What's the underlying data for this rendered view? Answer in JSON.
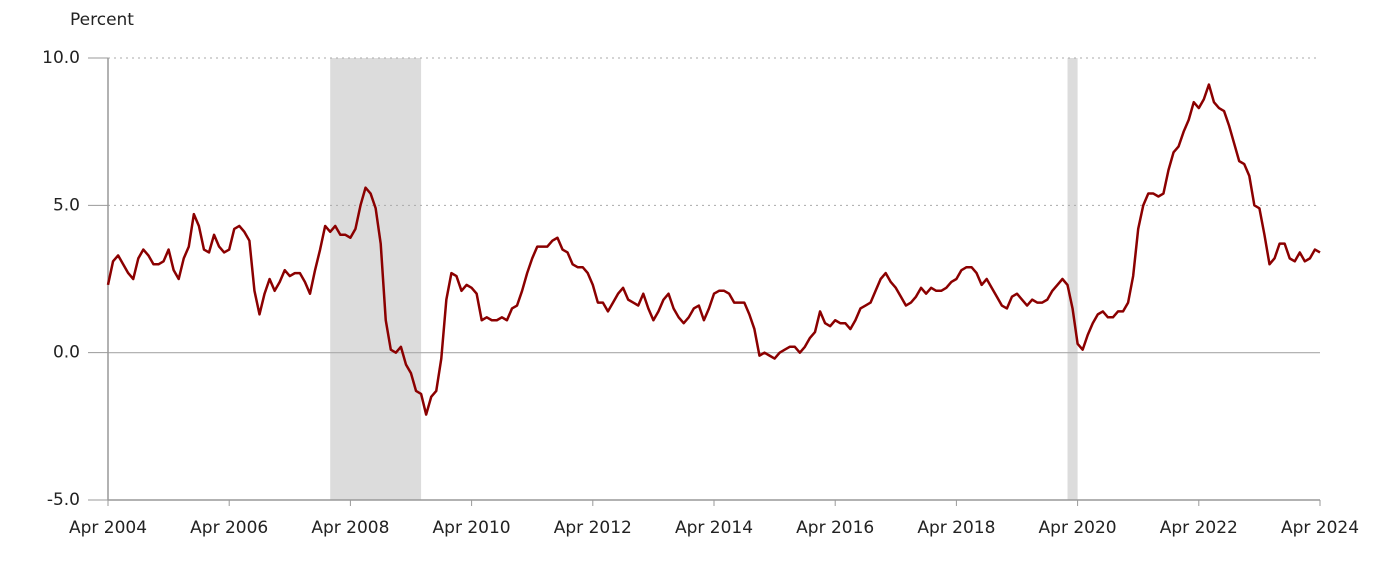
{
  "chart_data": {
    "type": "line",
    "y_label": "Percent",
    "color": "#8b0000",
    "recession_color": "#dcdcdc",
    "recessions": [
      [
        "2007-12",
        "2009-06"
      ],
      [
        "2020-02",
        "2020-04"
      ]
    ],
    "xlim": [
      "2004-04",
      "2024-04"
    ],
    "xticks": [
      {
        "value": "2004-04",
        "label": "Apr 2004"
      },
      {
        "value": "2006-04",
        "label": "Apr 2006"
      },
      {
        "value": "2008-04",
        "label": "Apr 2008"
      },
      {
        "value": "2010-04",
        "label": "Apr 2010"
      },
      {
        "value": "2012-04",
        "label": "Apr 2012"
      },
      {
        "value": "2014-04",
        "label": "Apr 2014"
      },
      {
        "value": "2016-04",
        "label": "Apr 2016"
      },
      {
        "value": "2018-04",
        "label": "Apr 2018"
      },
      {
        "value": "2020-04",
        "label": "Apr 2020"
      },
      {
        "value": "2022-04",
        "label": "Apr 2022"
      },
      {
        "value": "2024-04",
        "label": "Apr 2024"
      }
    ],
    "ylim": [
      -5,
      10
    ],
    "yticks": [
      {
        "value": -5,
        "label": "-5.0"
      },
      {
        "value": 0,
        "label": "0.0"
      },
      {
        "value": 5,
        "label": "5.0"
      },
      {
        "value": 10,
        "label": "10.0"
      }
    ],
    "grid": true,
    "x": [
      "2004-04",
      "2004-05",
      "2004-06",
      "2004-07",
      "2004-08",
      "2004-09",
      "2004-10",
      "2004-11",
      "2004-12",
      "2005-01",
      "2005-02",
      "2005-03",
      "2005-04",
      "2005-05",
      "2005-06",
      "2005-07",
      "2005-08",
      "2005-09",
      "2005-10",
      "2005-11",
      "2005-12",
      "2006-01",
      "2006-02",
      "2006-03",
      "2006-04",
      "2006-05",
      "2006-06",
      "2006-07",
      "2006-08",
      "2006-09",
      "2006-10",
      "2006-11",
      "2006-12",
      "2007-01",
      "2007-02",
      "2007-03",
      "2007-04",
      "2007-05",
      "2007-06",
      "2007-07",
      "2007-08",
      "2007-09",
      "2007-10",
      "2007-11",
      "2007-12",
      "2008-01",
      "2008-02",
      "2008-03",
      "2008-04",
      "2008-05",
      "2008-06",
      "2008-07",
      "2008-08",
      "2008-09",
      "2008-10",
      "2008-11",
      "2008-12",
      "2009-01",
      "2009-02",
      "2009-03",
      "2009-04",
      "2009-05",
      "2009-06",
      "2009-07",
      "2009-08",
      "2009-09",
      "2009-10",
      "2009-11",
      "2009-12",
      "2010-01",
      "2010-02",
      "2010-03",
      "2010-04",
      "2010-05",
      "2010-06",
      "2010-07",
      "2010-08",
      "2010-09",
      "2010-10",
      "2010-11",
      "2010-12",
      "2011-01",
      "2011-02",
      "2011-03",
      "2011-04",
      "2011-05",
      "2011-06",
      "2011-07",
      "2011-08",
      "2011-09",
      "2011-10",
      "2011-11",
      "2011-12",
      "2012-01",
      "2012-02",
      "2012-03",
      "2012-04",
      "2012-05",
      "2012-06",
      "2012-07",
      "2012-08",
      "2012-09",
      "2012-10",
      "2012-11",
      "2012-12",
      "2013-01",
      "2013-02",
      "2013-03",
      "2013-04",
      "2013-05",
      "2013-06",
      "2013-07",
      "2013-08",
      "2013-09",
      "2013-10",
      "2013-11",
      "2013-12",
      "2014-01",
      "2014-02",
      "2014-03",
      "2014-04",
      "2014-05",
      "2014-06",
      "2014-07",
      "2014-08",
      "2014-09",
      "2014-10",
      "2014-11",
      "2014-12",
      "2015-01",
      "2015-02",
      "2015-03",
      "2015-04",
      "2015-05",
      "2015-06",
      "2015-07",
      "2015-08",
      "2015-09",
      "2015-10",
      "2015-11",
      "2015-12",
      "2016-01",
      "2016-02",
      "2016-03",
      "2016-04",
      "2016-05",
      "2016-06",
      "2016-07",
      "2016-08",
      "2016-09",
      "2016-10",
      "2016-11",
      "2016-12",
      "2017-01",
      "2017-02",
      "2017-03",
      "2017-04",
      "2017-05",
      "2017-06",
      "2017-07",
      "2017-08",
      "2017-09",
      "2017-10",
      "2017-11",
      "2017-12",
      "2018-01",
      "2018-02",
      "2018-03",
      "2018-04",
      "2018-05",
      "2018-06",
      "2018-07",
      "2018-08",
      "2018-09",
      "2018-10",
      "2018-11",
      "2018-12",
      "2019-01",
      "2019-02",
      "2019-03",
      "2019-04",
      "2019-05",
      "2019-06",
      "2019-07",
      "2019-08",
      "2019-09",
      "2019-10",
      "2019-11",
      "2019-12",
      "2020-01",
      "2020-02",
      "2020-03",
      "2020-04",
      "2020-05",
      "2020-06",
      "2020-07",
      "2020-08",
      "2020-09",
      "2020-10",
      "2020-11",
      "2020-12",
      "2021-01",
      "2021-02",
      "2021-03",
      "2021-04",
      "2021-05",
      "2021-06",
      "2021-07",
      "2021-08",
      "2021-09",
      "2021-10",
      "2021-11",
      "2021-12",
      "2022-01",
      "2022-02",
      "2022-03",
      "2022-04",
      "2022-05",
      "2022-06",
      "2022-07",
      "2022-08",
      "2022-09",
      "2022-10",
      "2022-11",
      "2022-12",
      "2023-01",
      "2023-02",
      "2023-03",
      "2023-04",
      "2023-05",
      "2023-06",
      "2023-07",
      "2023-08",
      "2023-09",
      "2023-10",
      "2023-11",
      "2023-12",
      "2024-01",
      "2024-02",
      "2024-03",
      "2024-04"
    ],
    "values": [
      2.3,
      3.1,
      3.3,
      3.0,
      2.7,
      2.5,
      3.2,
      3.5,
      3.3,
      3.0,
      3.0,
      3.1,
      3.5,
      2.8,
      2.5,
      3.2,
      3.6,
      4.7,
      4.3,
      3.5,
      3.4,
      4.0,
      3.6,
      3.4,
      3.5,
      4.2,
      4.3,
      4.1,
      3.8,
      2.1,
      1.3,
      2.0,
      2.5,
      2.1,
      2.4,
      2.8,
      2.6,
      2.7,
      2.7,
      2.4,
      2.0,
      2.8,
      3.5,
      4.3,
      4.1,
      4.3,
      4.0,
      4.0,
      3.9,
      4.2,
      5.0,
      5.6,
      5.4,
      4.9,
      3.7,
      1.1,
      0.1,
      0.0,
      0.2,
      -0.4,
      -0.7,
      -1.3,
      -1.4,
      -2.1,
      -1.5,
      -1.3,
      -0.2,
      1.8,
      2.7,
      2.6,
      2.1,
      2.3,
      2.2,
      2.0,
      1.1,
      1.2,
      1.1,
      1.1,
      1.2,
      1.1,
      1.5,
      1.6,
      2.1,
      2.7,
      3.2,
      3.6,
      3.6,
      3.6,
      3.8,
      3.9,
      3.5,
      3.4,
      3.0,
      2.9,
      2.9,
      2.7,
      2.3,
      1.7,
      1.7,
      1.4,
      1.7,
      2.0,
      2.2,
      1.8,
      1.7,
      1.6,
      2.0,
      1.5,
      1.1,
      1.4,
      1.8,
      2.0,
      1.5,
      1.2,
      1.0,
      1.2,
      1.5,
      1.6,
      1.1,
      1.5,
      2.0,
      2.1,
      2.1,
      2.0,
      1.7,
      1.7,
      1.7,
      1.3,
      0.8,
      -0.1,
      0.0,
      -0.1,
      -0.2,
      0.0,
      0.1,
      0.2,
      0.2,
      0.0,
      0.2,
      0.5,
      0.7,
      1.4,
      1.0,
      0.9,
      1.1,
      1.0,
      1.0,
      0.8,
      1.1,
      1.5,
      1.6,
      1.7,
      2.1,
      2.5,
      2.7,
      2.4,
      2.2,
      1.9,
      1.6,
      1.7,
      1.9,
      2.2,
      2.0,
      2.2,
      2.1,
      2.1,
      2.2,
      2.4,
      2.5,
      2.8,
      2.9,
      2.9,
      2.7,
      2.3,
      2.5,
      2.2,
      1.9,
      1.6,
      1.5,
      1.9,
      2.0,
      1.8,
      1.6,
      1.8,
      1.7,
      1.7,
      1.8,
      2.1,
      2.3,
      2.5,
      2.3,
      1.5,
      0.3,
      0.1,
      0.6,
      1.0,
      1.3,
      1.4,
      1.2,
      1.2,
      1.4,
      1.4,
      1.7,
      2.6,
      4.2,
      5.0,
      5.4,
      5.4,
      5.3,
      5.4,
      6.2,
      6.8,
      7.0,
      7.5,
      7.9,
      8.5,
      8.3,
      8.6,
      9.1,
      8.5,
      8.3,
      8.2,
      7.7,
      7.1,
      6.5,
      6.4,
      6.0,
      5.0,
      4.9,
      4.0,
      3.0,
      3.2,
      3.7,
      3.7,
      3.2,
      3.1,
      3.4,
      3.1,
      3.2,
      3.5,
      3.4
    ]
  }
}
